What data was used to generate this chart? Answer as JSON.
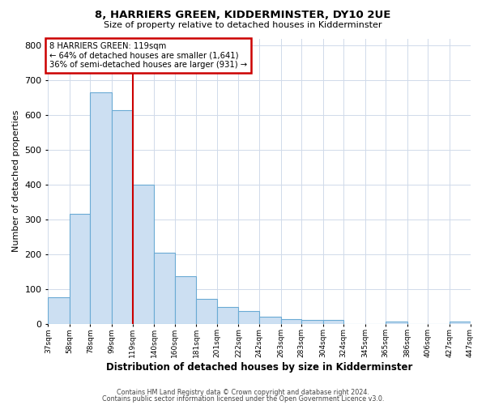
{
  "title": "8, HARRIERS GREEN, KIDDERMINSTER, DY10 2UE",
  "subtitle": "Size of property relative to detached houses in Kidderminster",
  "xlabel": "Distribution of detached houses by size in Kidderminster",
  "ylabel": "Number of detached properties",
  "bin_edges": [
    37,
    58,
    78,
    99,
    119,
    140,
    160,
    181,
    201,
    222,
    242,
    263,
    283,
    304,
    324,
    345,
    365,
    386,
    406,
    427,
    447
  ],
  "bar_heights": [
    75,
    315,
    665,
    615,
    400,
    205,
    137,
    70,
    47,
    37,
    20,
    12,
    10,
    10,
    0,
    0,
    5,
    0,
    0,
    5
  ],
  "bar_color": "#ccdff2",
  "bar_edge_color": "#6aaad4",
  "vline_x": 119,
  "vline_color": "#cc0000",
  "annotation_line1": "8 HARRIERS GREEN: 119sqm",
  "annotation_line2": "← 64% of detached houses are smaller (1,641)",
  "annotation_line3": "36% of semi-detached houses are larger (931) →",
  "annotation_box_color": "#ffffff",
  "annotation_box_edge_color": "#cc0000",
  "ylim": [
    0,
    820
  ],
  "yticks": [
    0,
    100,
    200,
    300,
    400,
    500,
    600,
    700,
    800
  ],
  "tick_labels": [
    "37sqm",
    "58sqm",
    "78sqm",
    "99sqm",
    "119sqm",
    "140sqm",
    "160sqm",
    "181sqm",
    "201sqm",
    "222sqm",
    "242sqm",
    "263sqm",
    "283sqm",
    "304sqm",
    "324sqm",
    "345sqm",
    "365sqm",
    "386sqm",
    "406sqm",
    "427sqm",
    "447sqm"
  ],
  "footer_line1": "Contains HM Land Registry data © Crown copyright and database right 2024.",
  "footer_line2": "Contains public sector information licensed under the Open Government Licence v3.0.",
  "bg_color": "#ffffff",
  "grid_color": "#d0daea"
}
